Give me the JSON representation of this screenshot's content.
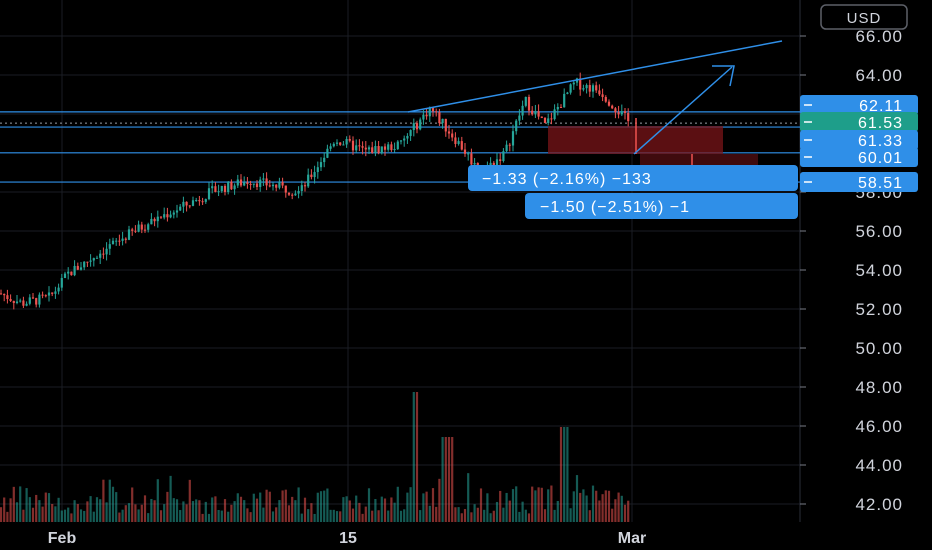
{
  "currency": "USD",
  "colors": {
    "up": "#26a69a",
    "down": "#ef5350",
    "drawing": "#2f8fe8",
    "tag_bg": "#2f8fe8",
    "last_tag_bg": "#1e9e8a",
    "grid": "#1a1d24",
    "axis_text": "#d1d4dc"
  },
  "chart_data": {
    "type": "candlestick",
    "title": "",
    "x_ticks": [
      "Feb",
      "15",
      "Mar"
    ],
    "y_ticks": [
      "66.00",
      "64.00",
      "62.00",
      "60.00",
      "58.00",
      "56.00",
      "54.00",
      "52.00",
      "50.00",
      "48.00",
      "46.00",
      "44.00",
      "42.00"
    ],
    "ylim": [
      41.0,
      67.5
    ],
    "grid": true,
    "price_path": [
      {
        "date": "Jan 29",
        "close": 52.8
      },
      {
        "date": "Feb 1",
        "close": 52.3
      },
      {
        "date": "Feb 3",
        "close": 52.6
      },
      {
        "date": "Feb 5",
        "close": 53.8
      },
      {
        "date": "Feb 8",
        "close": 54.9
      },
      {
        "date": "Feb 9",
        "close": 55.8
      },
      {
        "date": "Feb 10",
        "close": 56.6
      },
      {
        "date": "Feb 11",
        "close": 57.3
      },
      {
        "date": "Feb 12",
        "close": 58.1
      },
      {
        "date": "Feb 13",
        "close": 58.6
      },
      {
        "date": "Feb 14",
        "close": 58.0
      },
      {
        "date": "Feb 15",
        "close": 60.7
      },
      {
        "date": "Feb 16",
        "close": 60.1
      },
      {
        "date": "Feb 17",
        "close": 60.4
      },
      {
        "date": "Feb 18",
        "close": 62.3
      },
      {
        "date": "Feb 19",
        "close": 60.3
      },
      {
        "date": "Feb 20",
        "close": 59.0
      },
      {
        "date": "Feb 22",
        "close": 60.0
      },
      {
        "date": "Feb 23",
        "close": 62.7
      },
      {
        "date": "Feb 24",
        "close": 61.4
      },
      {
        "date": "Feb 25",
        "close": 63.6
      },
      {
        "date": "Feb 26",
        "close": 63.2
      },
      {
        "date": "Feb 27",
        "close": 61.5
      }
    ],
    "volume_note": "volume histogram at bottom, spikes around Feb 18 and Feb 24"
  },
  "price_tags": [
    {
      "label": "62.11",
      "value": 62.11,
      "style": "blue"
    },
    {
      "label": "61.53",
      "value": 61.53,
      "style": "last"
    },
    {
      "label": "61.33",
      "value": 61.33,
      "style": "blue"
    },
    {
      "label": "60.01",
      "value": 60.01,
      "style": "blue"
    },
    {
      "label": "58.51",
      "value": 58.51,
      "style": "blue"
    }
  ],
  "measures": [
    {
      "label": "−1.33 (−2.16%) −133"
    },
    {
      "label": "−1.50 (−2.51%) −1"
    }
  ]
}
